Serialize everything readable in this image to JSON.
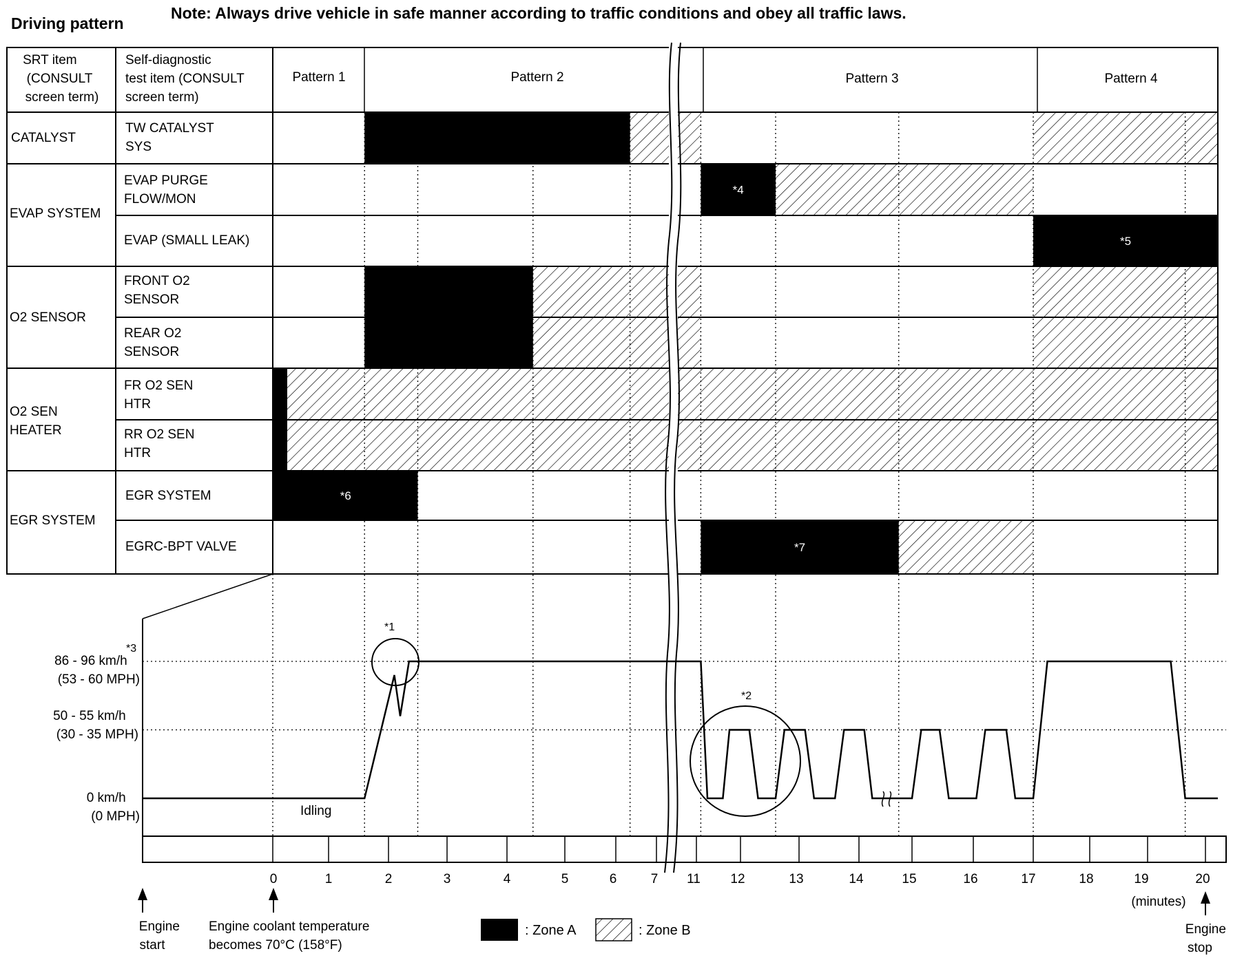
{
  "title": "Driving pattern",
  "note": "Note: Always drive vehicle in safe manner according to traffic conditions and obey all traffic laws.",
  "header": {
    "srt_item": [
      "SRT item",
      "(CONSULT",
      "screen term)"
    ],
    "test_item": [
      "Self-diagnostic",
      "test item (CONSULT",
      "screen term)"
    ],
    "patterns": [
      "Pattern 1",
      "Pattern 2",
      "Pattern 3",
      "Pattern 4"
    ]
  },
  "srt_items": [
    {
      "lines": [
        "CATALYST"
      ]
    },
    {
      "lines": [
        "EVAP SYSTEM"
      ]
    },
    {
      "lines": [
        "O2 SENSOR"
      ]
    },
    {
      "lines": [
        "O2 SEN",
        "HEATER"
      ]
    },
    {
      "lines": [
        "EGR SYSTEM"
      ]
    }
  ],
  "test_items": [
    {
      "lines": [
        "TW CATALYST",
        "SYS"
      ]
    },
    {
      "lines": [
        "EVAP PURGE",
        "FLOW/MON"
      ]
    },
    {
      "lines": [
        "EVAP (SMALL LEAK)"
      ]
    },
    {
      "lines": [
        "FRONT O2",
        "SENSOR"
      ]
    },
    {
      "lines": [
        "REAR O2",
        "SENSOR"
      ]
    },
    {
      "lines": [
        "FR O2 SEN",
        "HTR"
      ]
    },
    {
      "lines": [
        "RR O2 SEN",
        "HTR"
      ]
    },
    {
      "lines": [
        "EGR SYSTEM"
      ]
    },
    {
      "lines": [
        "EGRC-BPT VALVE"
      ]
    }
  ],
  "zones": [
    {
      "row": 0,
      "type": "A",
      "from": 1.6,
      "to": 6.35
    },
    {
      "row": 0,
      "type": "B",
      "from": 6.35,
      "to": 11.1
    },
    {
      "row": 0,
      "type": "B",
      "from": 17.0,
      "to": 20.2
    },
    {
      "row": 1,
      "type": "A",
      "from": 11.1,
      "to": 12.6,
      "label": "*4"
    },
    {
      "row": 1,
      "type": "B",
      "from": 12.6,
      "to": 17.0
    },
    {
      "row": 2,
      "type": "A",
      "from": 17.0,
      "to": 20.2,
      "label": "*5"
    },
    {
      "row": 3,
      "type": "A",
      "from": 1.6,
      "to": 4.45
    },
    {
      "row": 3,
      "type": "B",
      "from": 4.45,
      "to": 11.1
    },
    {
      "row": 3,
      "type": "B",
      "from": 17.0,
      "to": 20.2
    },
    {
      "row": 4,
      "type": "A",
      "from": 1.6,
      "to": 4.45
    },
    {
      "row": 4,
      "type": "B",
      "from": 4.45,
      "to": 11.1
    },
    {
      "row": 4,
      "type": "B",
      "from": 17.0,
      "to": 20.2
    },
    {
      "row": 5,
      "type": "A",
      "from": 0.0,
      "to": 0.25
    },
    {
      "row": 5,
      "type": "B",
      "from": 0.25,
      "to": 20.2
    },
    {
      "row": 6,
      "type": "A",
      "from": 0.0,
      "to": 0.25
    },
    {
      "row": 6,
      "type": "B",
      "from": 0.25,
      "to": 20.2
    },
    {
      "row": 7,
      "type": "A",
      "from": 0.0,
      "to": 2.5,
      "label": "*6"
    },
    {
      "row": 8,
      "type": "A",
      "from": 11.1,
      "to": 14.75,
      "label": "*7"
    },
    {
      "row": 8,
      "type": "B",
      "from": 14.75,
      "to": 17.0
    }
  ],
  "speed_axis": [
    {
      "level": "high",
      "lines": [
        "86 - 96 km/h",
        "(53 - 60 MPH)"
      ]
    },
    {
      "level": "mid",
      "lines": [
        "50 - 55 km/h",
        "(30 - 35 MPH)"
      ]
    },
    {
      "level": "zero",
      "lines": [
        "0 km/h",
        "(0 MPH)"
      ]
    }
  ],
  "speed_profile": [
    [
      -2.3,
      0
    ],
    [
      1.6,
      0
    ],
    [
      2.1,
      0.9
    ],
    [
      2.2,
      0.6
    ],
    [
      2.35,
      1
    ],
    [
      11.1,
      1
    ],
    [
      11.25,
      0
    ],
    [
      11.6,
      0
    ],
    [
      11.75,
      0.5
    ],
    [
      12.15,
      0.5
    ],
    [
      12.3,
      0
    ],
    [
      12.6,
      0
    ],
    [
      12.75,
      0.5
    ],
    [
      13.1,
      0.5
    ],
    [
      13.25,
      0
    ],
    [
      13.6,
      0
    ],
    [
      13.75,
      0.5
    ],
    [
      14.1,
      0.5
    ],
    [
      14.25,
      0
    ],
    [
      14.4,
      0
    ],
    [
      15.0,
      0
    ],
    [
      15.15,
      0.5
    ],
    [
      15.45,
      0.5
    ],
    [
      15.6,
      0
    ],
    [
      16.05,
      0
    ],
    [
      16.2,
      0.5
    ],
    [
      16.55,
      0.5
    ],
    [
      16.7,
      0
    ],
    [
      17.0,
      0
    ],
    [
      17.25,
      1
    ],
    [
      19.4,
      1
    ],
    [
      19.65,
      0
    ],
    [
      20.3,
      0
    ]
  ],
  "annotations": {
    "star1": "*1",
    "star2": "*2",
    "star3": "*3",
    "idling": "Idling"
  },
  "time_ticks": [
    "0",
    "1",
    "2",
    "3",
    "4",
    "5",
    "6",
    "7",
    "11",
    "12",
    "13",
    "14",
    "15",
    "16",
    "17",
    "18",
    "19",
    "20"
  ],
  "time_unit": "(minutes)",
  "bottom_labels": {
    "engine_start": [
      "Engine",
      "start"
    ],
    "coolant": [
      "Engine coolant temperature",
      "becomes 70°C (158°F)"
    ],
    "engine_stop": [
      "Engine",
      "stop"
    ]
  },
  "legend": {
    "zone_a": ": Zone A",
    "zone_b": ": Zone B"
  },
  "colors": {
    "ink": "#000000",
    "paper": "#ffffff"
  }
}
